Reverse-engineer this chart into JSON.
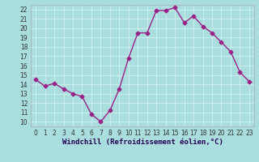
{
  "x": [
    0,
    1,
    2,
    3,
    4,
    5,
    6,
    7,
    8,
    9,
    10,
    11,
    12,
    13,
    14,
    15,
    16,
    17,
    18,
    19,
    20,
    21,
    22,
    23
  ],
  "y": [
    14.5,
    13.8,
    14.1,
    13.5,
    13.0,
    12.7,
    10.8,
    10.0,
    11.2,
    13.5,
    16.8,
    19.5,
    19.5,
    21.9,
    21.9,
    22.2,
    20.6,
    21.3,
    20.2,
    19.5,
    18.5,
    17.5,
    15.3,
    14.3
  ],
  "line_color": "#992288",
  "marker": "D",
  "marker_size": 2.5,
  "bg_color": "#aadddd",
  "grid_color": "#cceeee",
  "xlabel": "Windchill (Refroidissement éolien,°C)",
  "ylim": [
    9.5,
    22.5
  ],
  "xlim": [
    -0.5,
    23.5
  ],
  "yticks": [
    10,
    11,
    12,
    13,
    14,
    15,
    16,
    17,
    18,
    19,
    20,
    21,
    22
  ],
  "xticks": [
    0,
    1,
    2,
    3,
    4,
    5,
    6,
    7,
    8,
    9,
    10,
    11,
    12,
    13,
    14,
    15,
    16,
    17,
    18,
    19,
    20,
    21,
    22,
    23
  ],
  "tick_fontsize": 5.5,
  "xlabel_fontsize": 6.5,
  "line_width": 1.0
}
